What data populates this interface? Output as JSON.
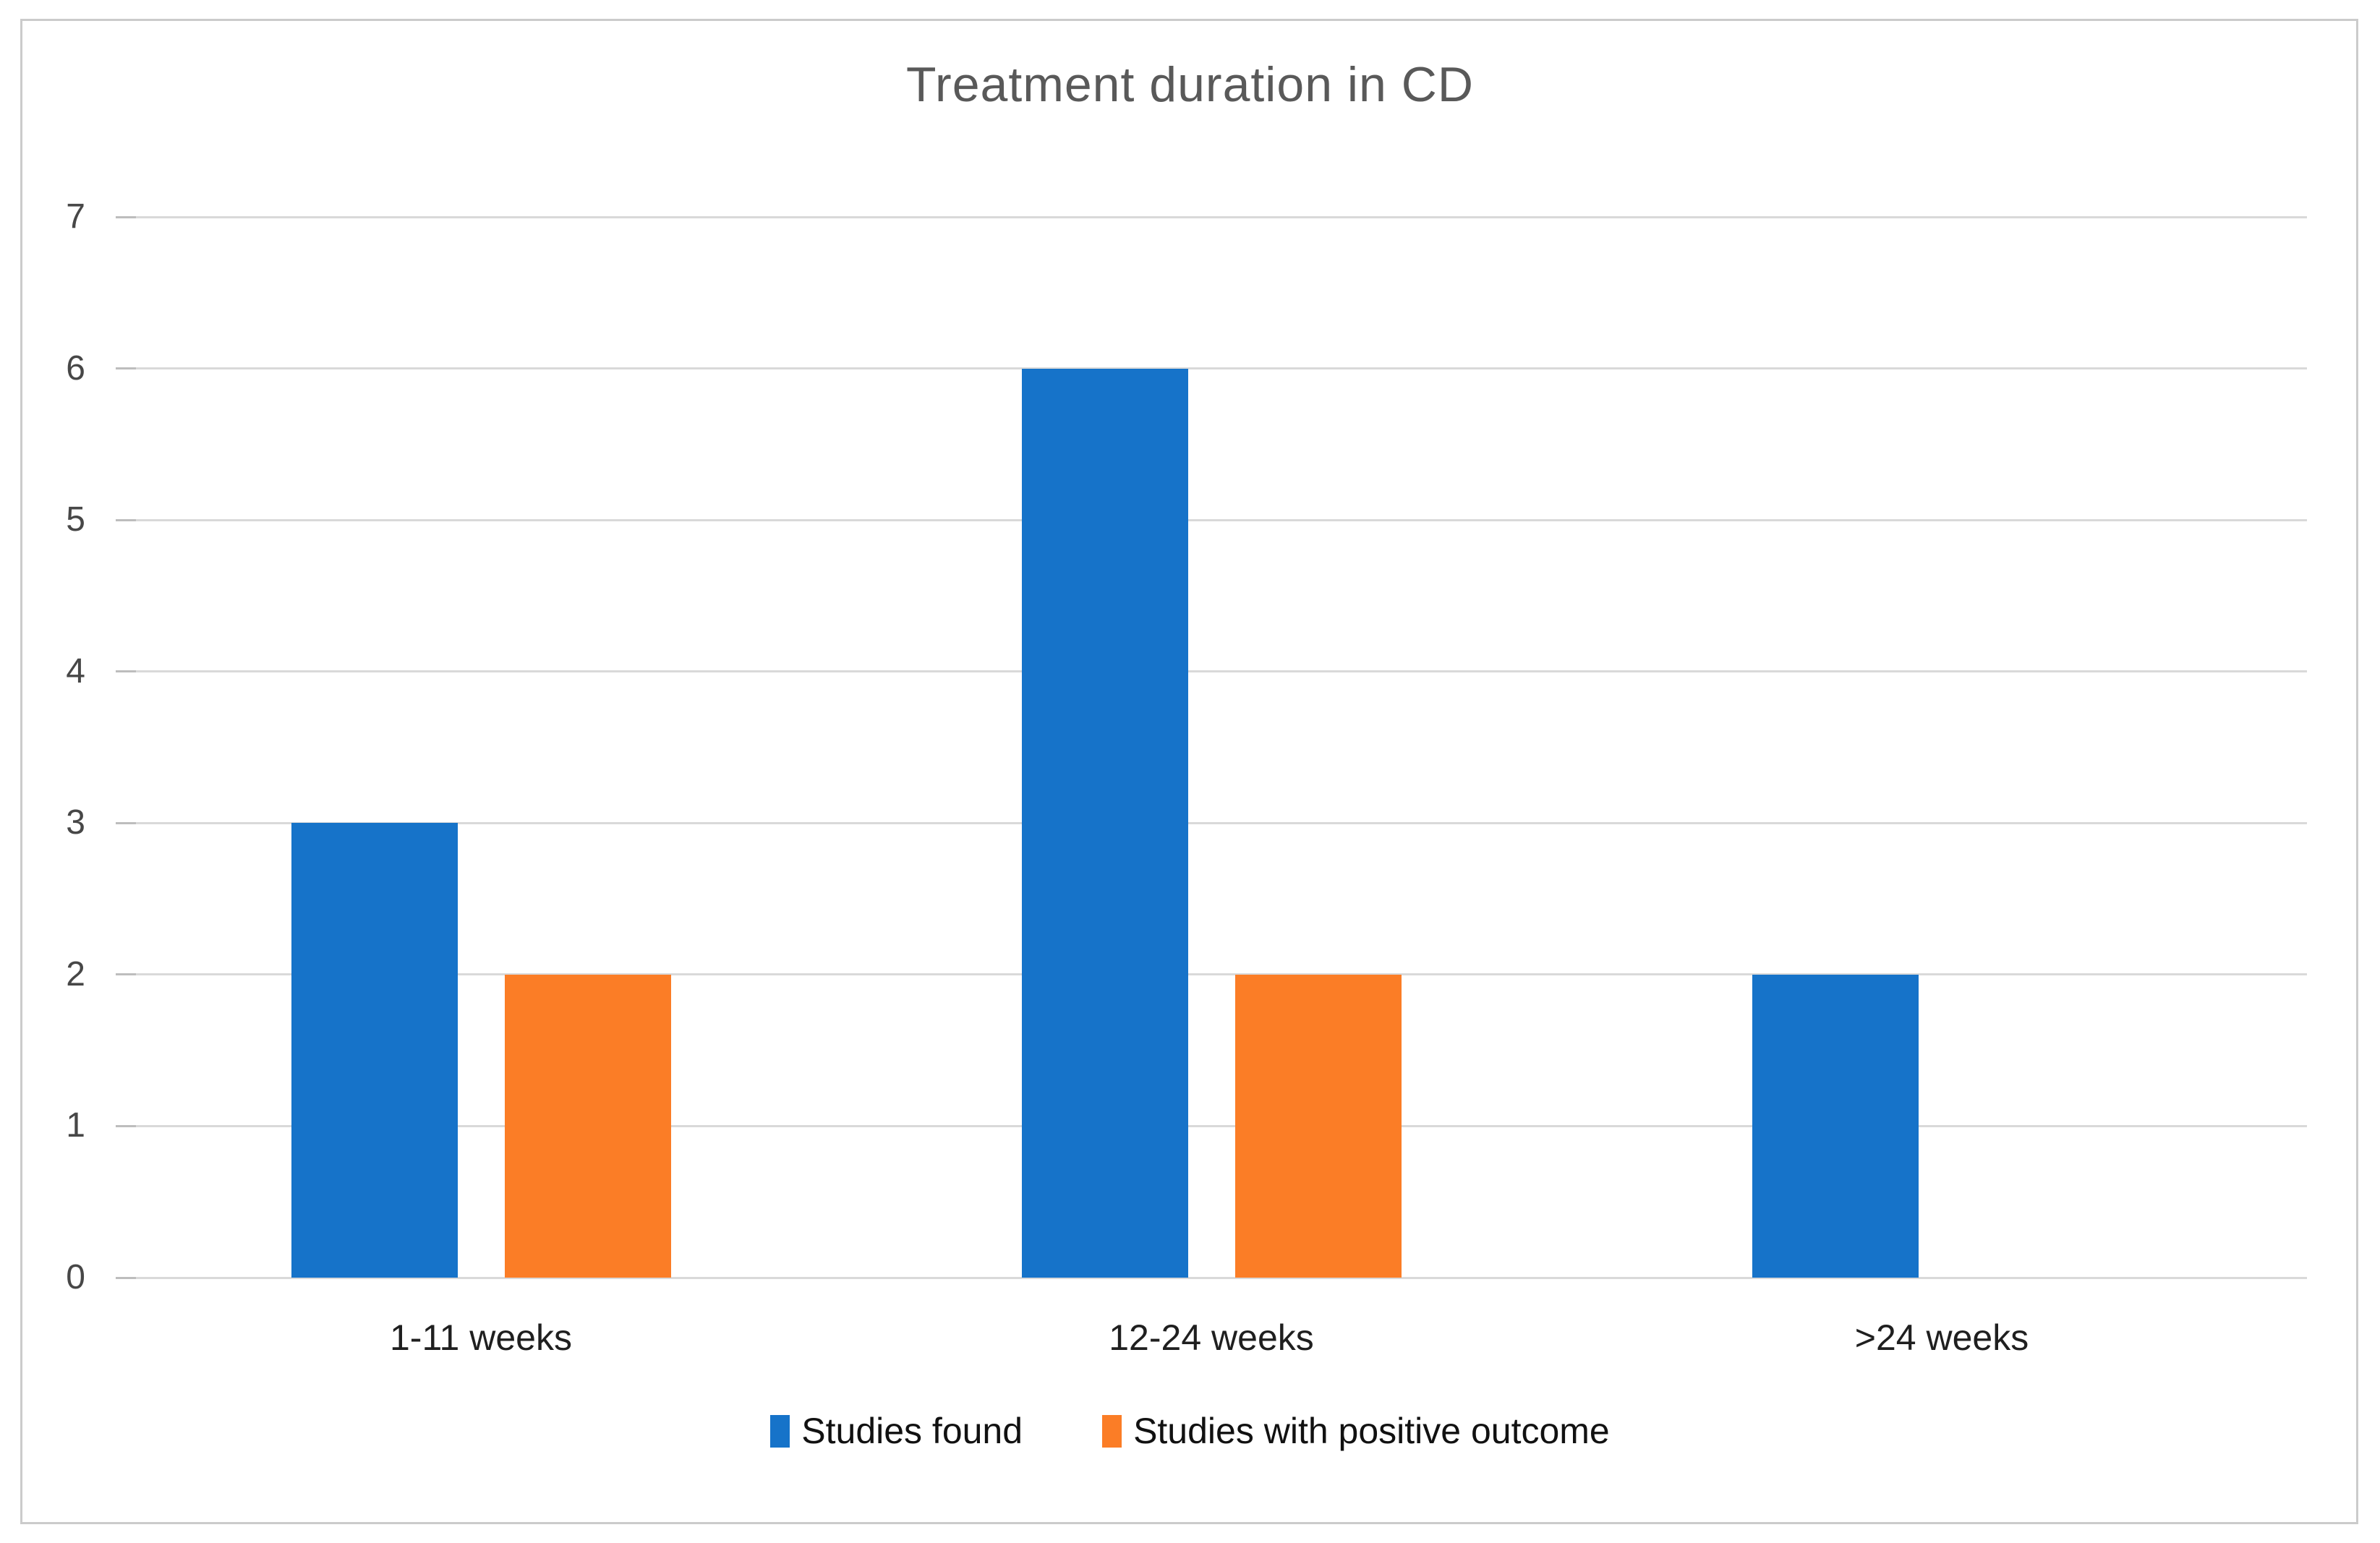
{
  "chart_data": {
    "type": "bar",
    "title": "Treatment duration in CD",
    "categories": [
      "1-11 weeks",
      "12-24 weeks",
      ">24 weeks"
    ],
    "series": [
      {
        "name": "Studies found",
        "color": "#1673C9",
        "values": [
          3,
          6,
          2
        ]
      },
      {
        "name": "Studies with positive outcome",
        "color": "#FB7D26",
        "values": [
          2,
          2,
          0
        ]
      }
    ],
    "xlabel": "",
    "ylabel": "",
    "ylim": [
      0,
      7
    ],
    "yticks": [
      0,
      1,
      2,
      3,
      4,
      5,
      6,
      7
    ],
    "grid": "horizontal",
    "legend_position": "bottom"
  },
  "palette": {
    "series_blue": "#1673C9",
    "series_orange": "#FB7D26",
    "gridline": "#D9D9D9",
    "grid_tick": "#BDBDBD",
    "frame_border": "#CBCBCB",
    "title_text": "#595959",
    "y_axis_text": "#474747",
    "x_axis_text": "#1F1F1F",
    "legend_text": "#111111",
    "background": "#FFFFFF"
  }
}
